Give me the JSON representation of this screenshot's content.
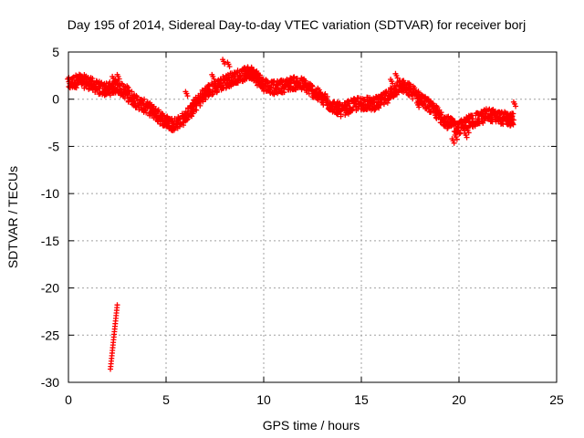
{
  "chart_data": {
    "type": "scatter",
    "title": "Day 195 of 2014, Sidereal Day-to-day VTEC variation (SDTVAR) for receiver borj",
    "xlabel": "GPS time / hours",
    "ylabel": "SDTVAR / TECUs",
    "xlim": [
      0,
      25
    ],
    "ylim": [
      -30,
      5
    ],
    "xticks": [
      0,
      5,
      10,
      15,
      20,
      25
    ],
    "yticks": [
      5,
      0,
      -5,
      -10,
      -15,
      -20,
      -25,
      -30
    ],
    "grid": true,
    "marker": "+",
    "series": [
      {
        "name": "SDTVAR",
        "color": "#ff0000",
        "trend": [
          [
            0.0,
            1.6
          ],
          [
            0.5,
            2.0
          ],
          [
            1.0,
            1.8
          ],
          [
            1.5,
            1.2
          ],
          [
            2.0,
            1.0
          ],
          [
            2.5,
            1.4
          ],
          [
            3.0,
            0.6
          ],
          [
            3.5,
            -0.3
          ],
          [
            4.0,
            -0.9
          ],
          [
            4.5,
            -1.6
          ],
          [
            5.0,
            -2.4
          ],
          [
            5.4,
            -2.7
          ],
          [
            6.0,
            -1.9
          ],
          [
            6.5,
            -0.6
          ],
          [
            7.0,
            0.6
          ],
          [
            7.5,
            1.3
          ],
          [
            8.0,
            1.8
          ],
          [
            8.5,
            2.3
          ],
          [
            9.0,
            2.6
          ],
          [
            9.3,
            2.9
          ],
          [
            9.6,
            2.4
          ],
          [
            10.0,
            1.6
          ],
          [
            10.5,
            1.2
          ],
          [
            11.0,
            1.4
          ],
          [
            11.5,
            1.7
          ],
          [
            12.0,
            1.6
          ],
          [
            12.5,
            0.9
          ],
          [
            13.0,
            0.1
          ],
          [
            13.5,
            -0.7
          ],
          [
            14.0,
            -1.2
          ],
          [
            14.5,
            -0.7
          ],
          [
            15.0,
            -0.4
          ],
          [
            15.5,
            -0.5
          ],
          [
            16.0,
            -0.3
          ],
          [
            16.5,
            0.6
          ],
          [
            17.0,
            1.5
          ],
          [
            17.5,
            0.9
          ],
          [
            18.0,
            0.1
          ],
          [
            18.5,
            -0.8
          ],
          [
            19.0,
            -1.7
          ],
          [
            19.5,
            -2.6
          ],
          [
            20.0,
            -3.0
          ],
          [
            20.5,
            -2.4
          ],
          [
            21.0,
            -2.1
          ],
          [
            21.5,
            -1.6
          ],
          [
            22.0,
            -1.9
          ],
          [
            22.5,
            -2.1
          ],
          [
            22.8,
            -2.2
          ]
        ],
        "bursts": [
          [
            2.3,
            2.2
          ],
          [
            2.45,
            1.9
          ],
          [
            2.55,
            2.4
          ],
          [
            6.05,
            0.6
          ],
          [
            7.95,
            4.0
          ],
          [
            8.2,
            3.7
          ],
          [
            7.4,
            2.4
          ],
          [
            16.8,
            2.5
          ],
          [
            16.55,
            1.9
          ],
          [
            19.7,
            -4.4
          ],
          [
            19.85,
            -4.0
          ],
          [
            20.35,
            -3.8
          ],
          [
            20.45,
            -3.3
          ],
          [
            22.85,
            -0.5
          ],
          [
            3.05,
            1.2
          ],
          [
            17.9,
            -0.6
          ]
        ],
        "drop_segment": {
          "x": [
            2.15,
            2.5
          ],
          "y": [
            -28.6,
            -21.8
          ]
        }
      }
    ]
  }
}
